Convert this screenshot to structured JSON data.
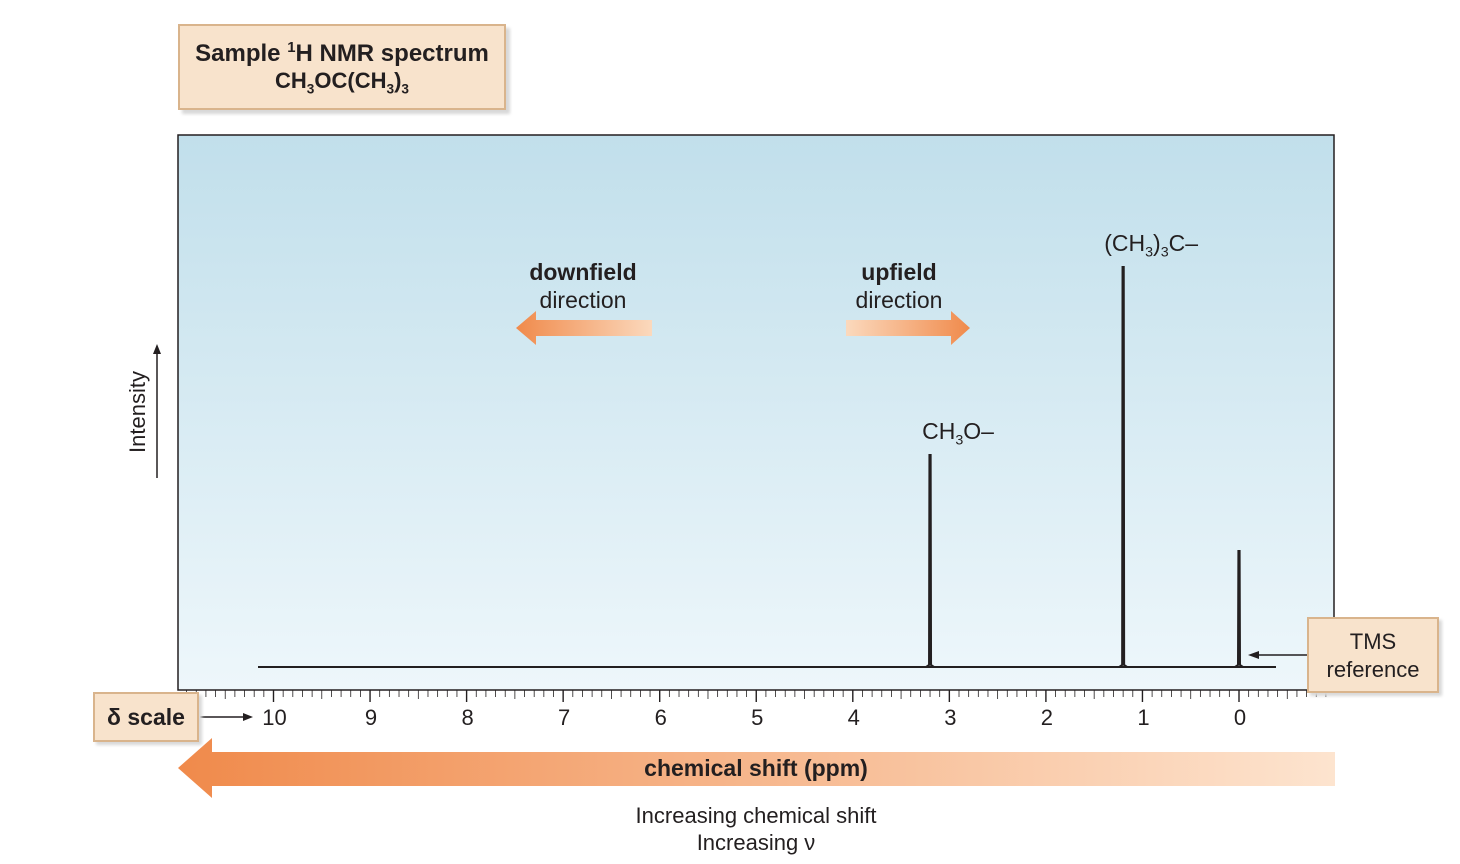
{
  "title": {
    "line1_prefix": "Sample ",
    "line1_sup": "1",
    "line1_rest": "H NMR spectrum",
    "formula": {
      "p1": "CH",
      "s1": "3",
      "p2": "OC(CH",
      "s2": "3",
      "p3": ")",
      "s3": "3"
    }
  },
  "y_axis_label": "Intensity",
  "delta_scale_label": "δ scale",
  "tms_label_line1": "TMS",
  "tms_label_line2": "reference",
  "downfield": {
    "line1": "downfield",
    "line2": "direction"
  },
  "upfield": {
    "line1": "upfield",
    "line2": "direction"
  },
  "bottom_arrow_label": "chemical shift (ppm)",
  "bottom_text_line1": "Increasing chemical shift",
  "bottom_text_line2": "Increasing ν",
  "colors": {
    "plot_bg_top": "#c1dfeb",
    "plot_bg_bottom": "#eef7fb",
    "arrow_orange": "#f08a4b",
    "arrow_light": "#fde4cf",
    "box_fill": "#f8e3cc",
    "box_border": "#d9b48c"
  },
  "chart_data": {
    "type": "line",
    "title": "Sample 1H NMR spectrum CH3OC(CH3)3",
    "xlabel": "chemical shift (ppm)",
    "ylabel": "Intensity",
    "x_reversed": true,
    "xlim": [
      11,
      -1
    ],
    "ticks": [
      "10",
      "9",
      "8",
      "7",
      "6",
      "5",
      "4",
      "3",
      "2",
      "1",
      "0"
    ],
    "peaks": [
      {
        "shift": 3.2,
        "height": 0.53,
        "label": {
          "p1": "CH",
          "s1": "3",
          "p2": "O–"
        }
      },
      {
        "shift": 1.2,
        "height": 1.0,
        "label": {
          "p1": "(CH",
          "s1": "3",
          "p2": ")",
          "s2": "3",
          "p3": "C–"
        }
      },
      {
        "shift": 0.0,
        "height": 0.29,
        "label": null
      }
    ]
  }
}
